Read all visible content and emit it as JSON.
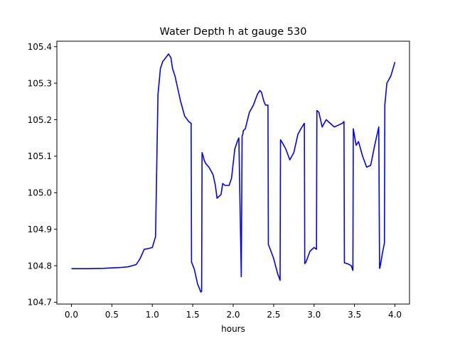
{
  "chart_data": {
    "type": "line",
    "title": "Water Depth h at gauge 530",
    "xlabel": "hours",
    "ylabel": "",
    "xlim": [
      -0.18,
      4.18
    ],
    "ylim": [
      104.695,
      105.415
    ],
    "xticks": [
      0.0,
      0.5,
      1.0,
      1.5,
      2.0,
      2.5,
      3.0,
      3.5,
      4.0
    ],
    "xtick_labels": [
      "0.0",
      "0.5",
      "1.0",
      "1.5",
      "2.0",
      "2.5",
      "3.0",
      "3.5",
      "4.0"
    ],
    "yticks": [
      104.7,
      104.8,
      104.9,
      105.0,
      105.1,
      105.2,
      105.3,
      105.4
    ],
    "ytick_labels": [
      "104.7",
      "104.8",
      "104.9",
      "105.0",
      "105.1",
      "105.2",
      "105.3",
      "105.4"
    ],
    "grid": false,
    "series": [
      {
        "color": "#0000ff",
        "x": [
          0.0,
          0.2,
          0.4,
          0.6,
          0.7,
          0.8,
          0.85,
          0.9,
          0.95,
          1.0,
          1.04,
          1.07,
          1.075,
          1.1,
          1.13,
          1.15,
          1.2,
          1.23,
          1.25,
          1.28,
          1.32,
          1.35,
          1.4,
          1.45,
          1.48,
          1.485,
          1.52,
          1.56,
          1.6,
          1.61,
          1.615,
          1.63,
          1.64,
          1.66,
          1.7,
          1.75,
          1.78,
          1.8,
          1.85,
          1.87,
          1.9,
          1.95,
          1.98,
          2.02,
          2.05,
          2.07,
          2.1,
          2.11,
          2.12,
          2.125,
          2.15,
          2.2,
          2.25,
          2.3,
          2.33,
          2.35,
          2.38,
          2.4,
          2.43,
          2.435,
          2.45,
          2.5,
          2.55,
          2.58,
          2.585,
          2.6,
          2.65,
          2.7,
          2.75,
          2.8,
          2.85,
          2.88,
          2.885,
          2.9,
          2.95,
          3.0,
          3.03,
          3.035,
          3.06,
          3.1,
          3.15,
          3.2,
          3.25,
          3.3,
          3.35,
          3.37,
          3.375,
          3.42,
          3.46,
          3.48,
          3.485,
          3.52,
          3.55,
          3.6,
          3.65,
          3.7,
          3.75,
          3.8,
          3.81,
          3.815,
          3.85,
          3.87,
          3.875,
          3.9,
          3.95,
          4.0
        ],
        "y": [
          104.792,
          104.792,
          104.793,
          104.795,
          104.797,
          104.803,
          104.82,
          104.845,
          104.847,
          104.85,
          104.88,
          105.27,
          105.28,
          105.34,
          105.36,
          105.365,
          105.38,
          105.37,
          105.34,
          105.32,
          105.28,
          105.25,
          105.21,
          105.195,
          105.19,
          104.81,
          104.79,
          104.75,
          104.728,
          104.73,
          105.11,
          105.1,
          105.09,
          105.08,
          105.07,
          105.05,
          105.02,
          104.985,
          104.995,
          105.025,
          105.02,
          105.02,
          105.04,
          105.12,
          105.14,
          105.15,
          104.77,
          105.155,
          105.16,
          105.17,
          105.175,
          105.22,
          105.24,
          105.27,
          105.28,
          105.275,
          105.25,
          105.24,
          105.24,
          104.858,
          104.85,
          104.82,
          104.778,
          104.76,
          105.145,
          105.14,
          105.12,
          105.09,
          105.11,
          105.16,
          105.18,
          105.19,
          104.806,
          104.81,
          104.84,
          104.85,
          104.845,
          105.225,
          105.22,
          105.18,
          105.2,
          105.19,
          105.18,
          105.185,
          105.19,
          105.195,
          104.808,
          104.805,
          104.8,
          104.787,
          105.175,
          105.13,
          105.14,
          105.1,
          105.07,
          105.075,
          105.13,
          105.18,
          104.793,
          104.795,
          104.84,
          104.862,
          105.24,
          105.3,
          105.32,
          105.358
        ]
      }
    ]
  }
}
